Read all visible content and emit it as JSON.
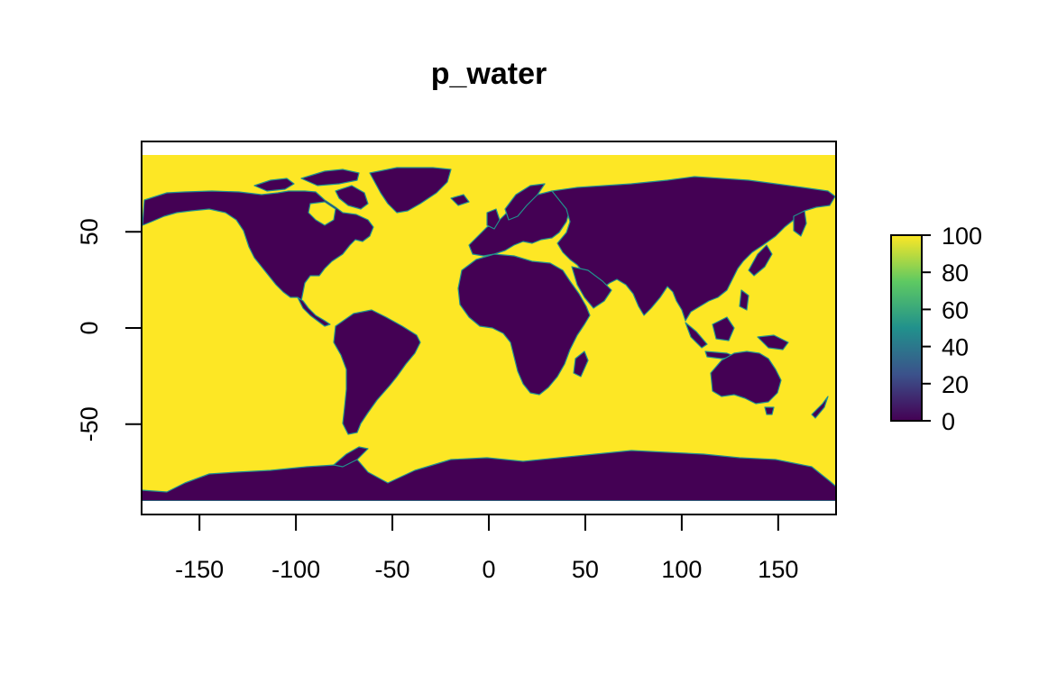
{
  "map": {
    "title": "p_water",
    "x_axis": {
      "range": [
        -180,
        180
      ],
      "ticks": [
        -150,
        -100,
        -50,
        0,
        50,
        100,
        150
      ]
    },
    "y_axis": {
      "range": [
        -97,
        97
      ],
      "ticks": [
        50,
        0,
        -50
      ],
      "tick_labels": [
        "50",
        "0",
        "-50"
      ]
    },
    "raster_extent": {
      "lon": [
        -180,
        180
      ],
      "lat": [
        -90,
        90
      ]
    },
    "colors": {
      "water": "#FDE725",
      "land": "#440154",
      "coast": "#21918C"
    },
    "legend": {
      "ticks": [
        100,
        80,
        60,
        40,
        20,
        0
      ],
      "tick_labels": [
        "100",
        "80",
        "60",
        "40",
        "20",
        "0"
      ],
      "gradient": [
        "#440154",
        "#3B528B",
        "#21918C",
        "#5EC962",
        "#FDE725"
      ]
    }
  }
}
